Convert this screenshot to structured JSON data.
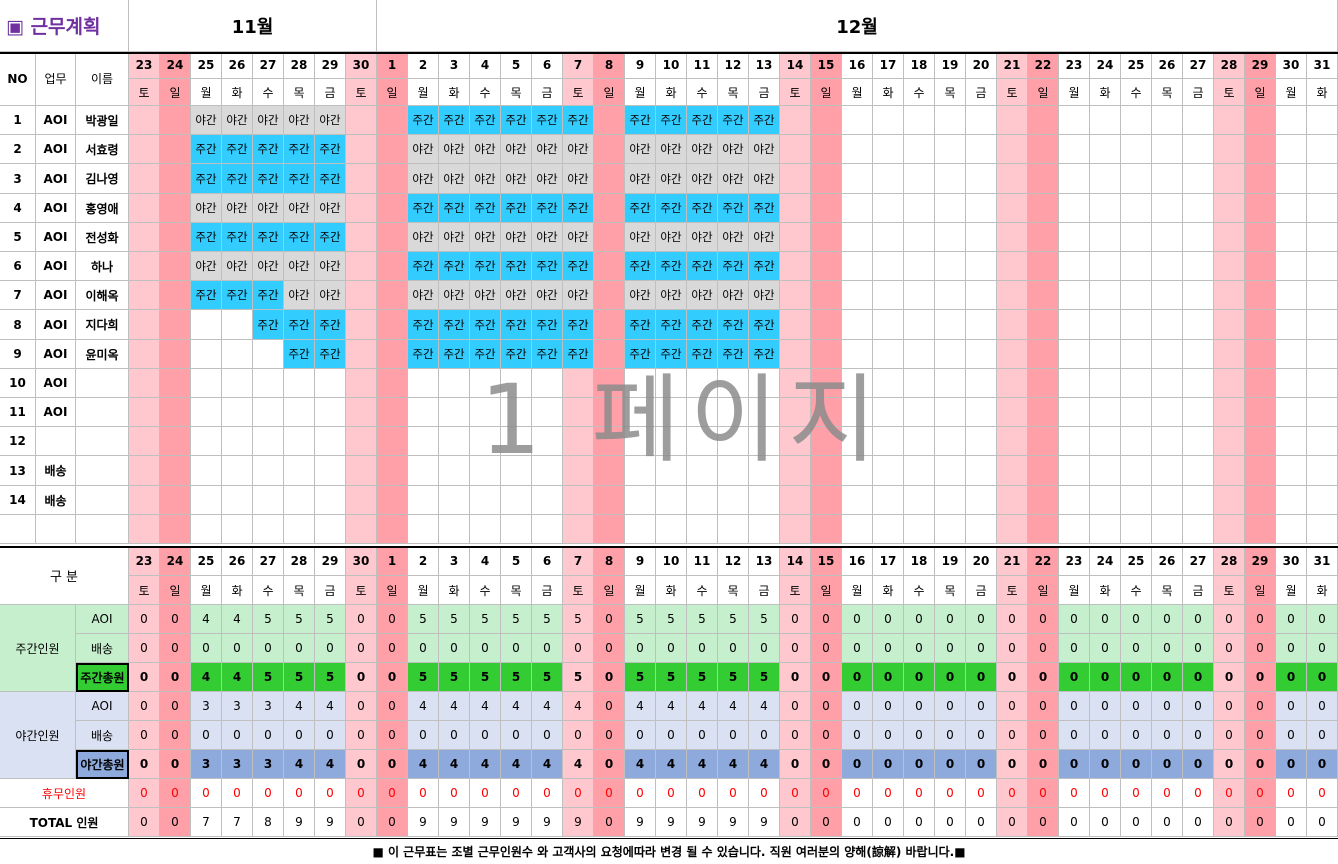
{
  "title": "▣ 근무계획",
  "months": {
    "nov": "11월",
    "dec": "12월"
  },
  "header": {
    "no": "NO",
    "dept": "업무",
    "name": "이름",
    "category": "구      분"
  },
  "dates": [
    "23",
    "24",
    "25",
    "26",
    "27",
    "28",
    "29",
    "30",
    "1",
    "2",
    "3",
    "4",
    "5",
    "6",
    "7",
    "8",
    "9",
    "10",
    "11",
    "12",
    "13",
    "14",
    "15",
    "16",
    "17",
    "18",
    "19",
    "20",
    "21",
    "22",
    "23",
    "24",
    "25",
    "26",
    "27",
    "28",
    "29",
    "30",
    "31"
  ],
  "weekdays": [
    "토",
    "일",
    "월",
    "화",
    "수",
    "목",
    "금",
    "토",
    "일",
    "월",
    "화",
    "수",
    "목",
    "금",
    "토",
    "일",
    "월",
    "화",
    "수",
    "목",
    "금",
    "토",
    "일",
    "월",
    "화",
    "수",
    "목",
    "금",
    "토",
    "일",
    "월",
    "화",
    "수",
    "목",
    "금",
    "토",
    "일",
    "월",
    "화"
  ],
  "employees": [
    {
      "no": "1",
      "dept": "AOI",
      "name": "박광일",
      "shifts": [
        "",
        "",
        "야간",
        "야간",
        "야간",
        "야간",
        "야간",
        "",
        "",
        "주간",
        "주간",
        "주간",
        "주간",
        "주간",
        "주간",
        "",
        "주간",
        "주간",
        "주간",
        "주간",
        "주간"
      ]
    },
    {
      "no": "2",
      "dept": "AOI",
      "name": "서효령",
      "shifts": [
        "",
        "",
        "주간",
        "주간",
        "주간",
        "주간",
        "주간",
        "",
        "",
        "야간",
        "야간",
        "야간",
        "야간",
        "야간",
        "야간",
        "",
        "야간",
        "야간",
        "야간",
        "야간",
        "야간"
      ]
    },
    {
      "no": "3",
      "dept": "AOI",
      "name": "김나영",
      "shifts": [
        "",
        "",
        "주간",
        "주간",
        "주간",
        "주간",
        "주간",
        "",
        "",
        "야간",
        "야간",
        "야간",
        "야간",
        "야간",
        "야간",
        "",
        "야간",
        "야간",
        "야간",
        "야간",
        "야간"
      ]
    },
    {
      "no": "4",
      "dept": "AOI",
      "name": "홍영애",
      "shifts": [
        "",
        "",
        "야간",
        "야간",
        "야간",
        "야간",
        "야간",
        "",
        "",
        "주간",
        "주간",
        "주간",
        "주간",
        "주간",
        "주간",
        "",
        "주간",
        "주간",
        "주간",
        "주간",
        "주간"
      ]
    },
    {
      "no": "5",
      "dept": "AOI",
      "name": "전성화",
      "shifts": [
        "",
        "",
        "주간",
        "주간",
        "주간",
        "주간",
        "주간",
        "",
        "",
        "야간",
        "야간",
        "야간",
        "야간",
        "야간",
        "야간",
        "",
        "야간",
        "야간",
        "야간",
        "야간",
        "야간"
      ]
    },
    {
      "no": "6",
      "dept": "AOI",
      "name": "하나",
      "shifts": [
        "",
        "",
        "야간",
        "야간",
        "야간",
        "야간",
        "야간",
        "",
        "",
        "주간",
        "주간",
        "주간",
        "주간",
        "주간",
        "주간",
        "",
        "주간",
        "주간",
        "주간",
        "주간",
        "주간"
      ]
    },
    {
      "no": "7",
      "dept": "AOI",
      "name": "이해옥",
      "shifts": [
        "",
        "",
        "주간",
        "주간",
        "주간",
        "야간",
        "야간",
        "",
        "",
        "야간",
        "야간",
        "야간",
        "야간",
        "야간",
        "야간",
        "",
        "야간",
        "야간",
        "야간",
        "야간",
        "야간"
      ]
    },
    {
      "no": "8",
      "dept": "AOI",
      "name": "지다희",
      "shifts": [
        "",
        "",
        "",
        "",
        "주간",
        "주간",
        "주간",
        "",
        "",
        "주간",
        "주간",
        "주간",
        "주간",
        "주간",
        "주간",
        "",
        "주간",
        "주간",
        "주간",
        "주간",
        "주간"
      ]
    },
    {
      "no": "9",
      "dept": "AOI",
      "name": "윤미옥",
      "shifts": [
        "",
        "",
        "",
        "",
        "",
        "주간",
        "주간",
        "",
        "",
        "주간",
        "주간",
        "주간",
        "주간",
        "주간",
        "주간",
        "",
        "주간",
        "주간",
        "주간",
        "주간",
        "주간"
      ]
    },
    {
      "no": "10",
      "dept": "AOI",
      "name": "",
      "shifts": []
    },
    {
      "no": "11",
      "dept": "AOI",
      "name": "",
      "shifts": []
    },
    {
      "no": "12",
      "dept": "",
      "name": "",
      "shifts": []
    },
    {
      "no": "13",
      "dept": "배송",
      "name": "",
      "shifts": []
    },
    {
      "no": "14",
      "dept": "배송",
      "name": "",
      "shifts": []
    },
    {
      "no": "",
      "dept": "",
      "name": "",
      "shifts": []
    }
  ],
  "watermark": "1 페이지",
  "summary": {
    "day_group": "주간인원",
    "night_group": "야간인원",
    "rows": [
      {
        "key": "day_aoi",
        "label": "AOI",
        "values": [
          "0",
          "0",
          "4",
          "4",
          "5",
          "5",
          "5",
          "0",
          "0",
          "5",
          "5",
          "5",
          "5",
          "5",
          "5",
          "0",
          "5",
          "5",
          "5",
          "5",
          "5",
          "0",
          "0",
          "0",
          "0",
          "0",
          "0",
          "0",
          "0",
          "0",
          "0",
          "0",
          "0",
          "0",
          "0",
          "0",
          "0",
          "0",
          "0"
        ]
      },
      {
        "key": "day_ship",
        "label": "배송",
        "values": [
          "0",
          "0",
          "0",
          "0",
          "0",
          "0",
          "0",
          "0",
          "0",
          "0",
          "0",
          "0",
          "0",
          "0",
          "0",
          "0",
          "0",
          "0",
          "0",
          "0",
          "0",
          "0",
          "0",
          "0",
          "0",
          "0",
          "0",
          "0",
          "0",
          "0",
          "0",
          "0",
          "0",
          "0",
          "0",
          "0",
          "0",
          "0",
          "0"
        ]
      },
      {
        "key": "day_total",
        "label": "주간총원",
        "values": [
          "0",
          "0",
          "4",
          "4",
          "5",
          "5",
          "5",
          "0",
          "0",
          "5",
          "5",
          "5",
          "5",
          "5",
          "5",
          "0",
          "5",
          "5",
          "5",
          "5",
          "5",
          "0",
          "0",
          "0",
          "0",
          "0",
          "0",
          "0",
          "0",
          "0",
          "0",
          "0",
          "0",
          "0",
          "0",
          "0",
          "0",
          "0",
          "0"
        ]
      },
      {
        "key": "night_aoi",
        "label": "AOI",
        "values": [
          "0",
          "0",
          "3",
          "3",
          "3",
          "4",
          "4",
          "0",
          "0",
          "4",
          "4",
          "4",
          "4",
          "4",
          "4",
          "0",
          "4",
          "4",
          "4",
          "4",
          "4",
          "0",
          "0",
          "0",
          "0",
          "0",
          "0",
          "0",
          "0",
          "0",
          "0",
          "0",
          "0",
          "0",
          "0",
          "0",
          "0",
          "0",
          "0"
        ]
      },
      {
        "key": "night_ship",
        "label": "배송",
        "values": [
          "0",
          "0",
          "0",
          "0",
          "0",
          "0",
          "0",
          "0",
          "0",
          "0",
          "0",
          "0",
          "0",
          "0",
          "0",
          "0",
          "0",
          "0",
          "0",
          "0",
          "0",
          "0",
          "0",
          "0",
          "0",
          "0",
          "0",
          "0",
          "0",
          "0",
          "0",
          "0",
          "0",
          "0",
          "0",
          "0",
          "0",
          "0",
          "0"
        ]
      },
      {
        "key": "night_total",
        "label": "야간총원",
        "values": [
          "0",
          "0",
          "3",
          "3",
          "3",
          "4",
          "4",
          "0",
          "0",
          "4",
          "4",
          "4",
          "4",
          "4",
          "4",
          "0",
          "4",
          "4",
          "4",
          "4",
          "4",
          "0",
          "0",
          "0",
          "0",
          "0",
          "0",
          "0",
          "0",
          "0",
          "0",
          "0",
          "0",
          "0",
          "0",
          "0",
          "0",
          "0",
          "0"
        ]
      },
      {
        "key": "off",
        "label": "휴무인원",
        "values": [
          "0",
          "0",
          "0",
          "0",
          "0",
          "0",
          "0",
          "0",
          "0",
          "0",
          "0",
          "0",
          "0",
          "0",
          "0",
          "0",
          "0",
          "0",
          "0",
          "0",
          "0",
          "0",
          "0",
          "0",
          "0",
          "0",
          "0",
          "0",
          "0",
          "0",
          "0",
          "0",
          "0",
          "0",
          "0",
          "0",
          "0",
          "0",
          "0"
        ]
      },
      {
        "key": "total",
        "label": "TOTAL 인원",
        "values": [
          "0",
          "0",
          "7",
          "7",
          "8",
          "9",
          "9",
          "0",
          "0",
          "9",
          "9",
          "9",
          "9",
          "9",
          "9",
          "0",
          "9",
          "9",
          "9",
          "9",
          "9",
          "0",
          "0",
          "0",
          "0",
          "0",
          "0",
          "0",
          "0",
          "0",
          "0",
          "0",
          "0",
          "0",
          "0",
          "0",
          "0",
          "0",
          "0"
        ]
      }
    ]
  },
  "footer": "■ 이 근무표는 조별 근무인원수 와 고객사의 요청에따라 변경 될 수 있습니다.  직원 여러분의 양해(諒解) 바랍니다.■",
  "colors": {
    "day_shift": "#33ccff",
    "night_shift": "#d9d9d9",
    "sat_light": "#ffc7ce",
    "sun_dark": "#ff9fa8",
    "green_light": "#c6efce",
    "green_dark": "#33cc33",
    "blue_light": "#d9e1f2",
    "blue_dark": "#8ea9db",
    "red_text": "#ff0000"
  }
}
